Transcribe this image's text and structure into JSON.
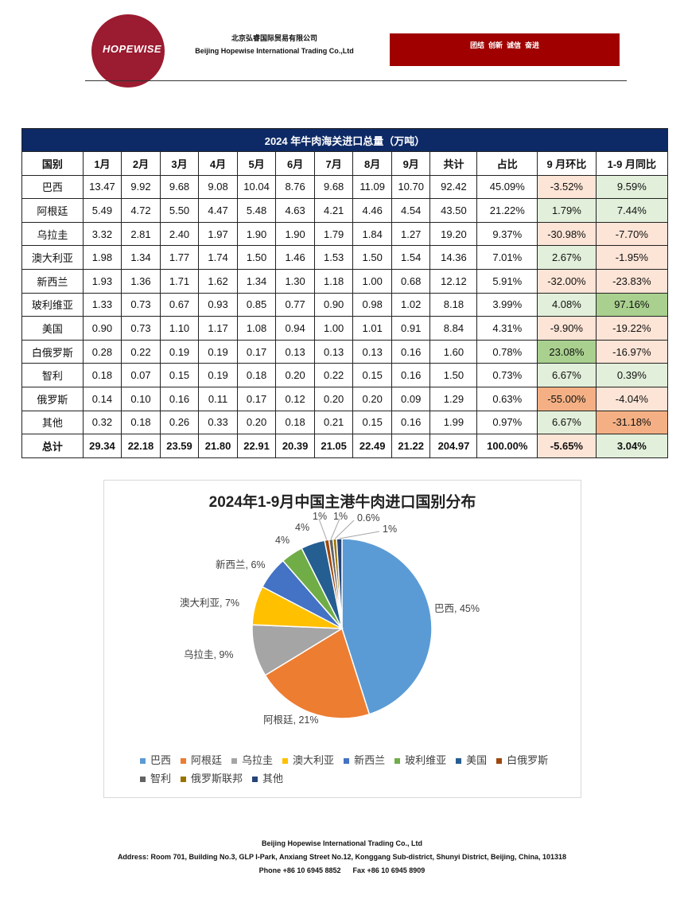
{
  "header": {
    "logo_text": "HOPEWISE",
    "company_cn": "北京弘睿国际贸易有限公司",
    "company_en": "Beijing Hopewise International Trading Co.,Ltd",
    "slogan": "团结  创新  诚信  奋进"
  },
  "table": {
    "title": "2024 年牛肉海关进口总量（万吨）",
    "headers": [
      "国别",
      "1月",
      "2月",
      "3月",
      "4月",
      "5月",
      "6月",
      "7月",
      "8月",
      "9月",
      "共计",
      "占比",
      "9 月环比",
      "1-9 月同比"
    ],
    "rows": [
      [
        "巴西",
        "13.47",
        "9.92",
        "9.68",
        "9.08",
        "10.04",
        "8.76",
        "9.68",
        "11.09",
        "10.70",
        "92.42",
        "45.09%",
        "-3.52%",
        "9.59%"
      ],
      [
        "阿根廷",
        "5.49",
        "4.72",
        "5.50",
        "4.47",
        "5.48",
        "4.63",
        "4.21",
        "4.46",
        "4.54",
        "43.50",
        "21.22%",
        "1.79%",
        "7.44%"
      ],
      [
        "乌拉圭",
        "3.32",
        "2.81",
        "2.40",
        "1.97",
        "1.90",
        "1.90",
        "1.79",
        "1.84",
        "1.27",
        "19.20",
        "9.37%",
        "-30.98%",
        "-7.70%"
      ],
      [
        "澳大利亚",
        "1.98",
        "1.34",
        "1.77",
        "1.74",
        "1.50",
        "1.46",
        "1.53",
        "1.50",
        "1.54",
        "14.36",
        "7.01%",
        "2.67%",
        "-1.95%"
      ],
      [
        "新西兰",
        "1.93",
        "1.36",
        "1.71",
        "1.62",
        "1.34",
        "1.30",
        "1.18",
        "1.00",
        "0.68",
        "12.12",
        "5.91%",
        "-32.00%",
        "-23.83%"
      ],
      [
        "玻利维亚",
        "1.33",
        "0.73",
        "0.67",
        "0.93",
        "0.85",
        "0.77",
        "0.90",
        "0.98",
        "1.02",
        "8.18",
        "3.99%",
        "4.08%",
        "97.16%"
      ],
      [
        "美国",
        "0.90",
        "0.73",
        "1.10",
        "1.17",
        "1.08",
        "0.94",
        "1.00",
        "1.01",
        "0.91",
        "8.84",
        "4.31%",
        "-9.90%",
        "-19.22%"
      ],
      [
        "白俄罗斯",
        "0.28",
        "0.22",
        "0.19",
        "0.19",
        "0.17",
        "0.13",
        "0.13",
        "0.13",
        "0.16",
        "1.60",
        "0.78%",
        "23.08%",
        "-16.97%"
      ],
      [
        "智利",
        "0.18",
        "0.07",
        "0.15",
        "0.19",
        "0.18",
        "0.20",
        "0.22",
        "0.15",
        "0.16",
        "1.50",
        "0.73%",
        "6.67%",
        "0.39%"
      ],
      [
        "俄罗斯",
        "0.14",
        "0.10",
        "0.16",
        "0.11",
        "0.17",
        "0.12",
        "0.20",
        "0.20",
        "0.09",
        "1.29",
        "0.63%",
        "-55.00%",
        "-4.04%"
      ],
      [
        "其他",
        "0.32",
        "0.18",
        "0.26",
        "0.33",
        "0.20",
        "0.18",
        "0.21",
        "0.15",
        "0.16",
        "1.99",
        "0.97%",
        "6.67%",
        "-31.18%"
      ]
    ],
    "total": [
      "总计",
      "29.34",
      "22.18",
      "23.59",
      "21.80",
      "22.91",
      "20.39",
      "21.05",
      "22.49",
      "21.22",
      "204.97",
      "100.00%",
      "-5.65%",
      "3.04%"
    ],
    "highlight": [
      [
        "#fce4d6",
        "#e2efda"
      ],
      [
        "#e2efda",
        "#e2efda"
      ],
      [
        "#fce4d6",
        "#fce4d6"
      ],
      [
        "#e2efda",
        "#fce4d6"
      ],
      [
        "#fce4d6",
        "#fce4d6"
      ],
      [
        "#e2efda",
        "#a9d08e"
      ],
      [
        "#fce4d6",
        "#fce4d6"
      ],
      [
        "#a9d08e",
        "#fce4d6"
      ],
      [
        "#e2efda",
        "#e2efda"
      ],
      [
        "#f4b084",
        "#fce4d6"
      ],
      [
        "#e2efda",
        "#f4b084"
      ],
      [
        "#fce4d6",
        "#e2efda"
      ]
    ]
  },
  "chart_data": {
    "type": "pie",
    "title": "2024年1-9月中国主港牛肉进口国别分布",
    "categories": [
      "巴西",
      "阿根廷",
      "乌拉圭",
      "澳大利亚",
      "新西兰",
      "玻利维亚",
      "美国",
      "白俄罗斯",
      "智利",
      "俄罗斯联邦",
      "其他"
    ],
    "values": [
      45.09,
      21.22,
      9.37,
      7.01,
      5.91,
      3.99,
      4.31,
      0.78,
      0.73,
      0.63,
      0.97
    ],
    "labels": [
      "巴西, 45%",
      "阿根廷, 21%",
      "乌拉圭, 9%",
      "澳大利亚, 7%",
      "新西兰, 6%",
      "4%",
      "4%",
      "1%",
      "1%",
      "0.6%",
      "1%"
    ],
    "colors": [
      "#5b9bd5",
      "#ed7d31",
      "#a5a5a5",
      "#ffc000",
      "#4472c4",
      "#70ad47",
      "#255e91",
      "#9e480e",
      "#636363",
      "#997300",
      "#264478"
    ],
    "legend_position": "bottom"
  },
  "footer": {
    "company": "Beijing Hopewise International Trading Co., Ltd",
    "address": "Address: Room 701, Building No.3, GLP I-Park, Anxiang Street No.12, Konggang Sub-district, Shunyi District, Beijing, China, 101318",
    "contact": "Phone +86 10 6945 8852      Fax +86 10 6945 8909"
  }
}
